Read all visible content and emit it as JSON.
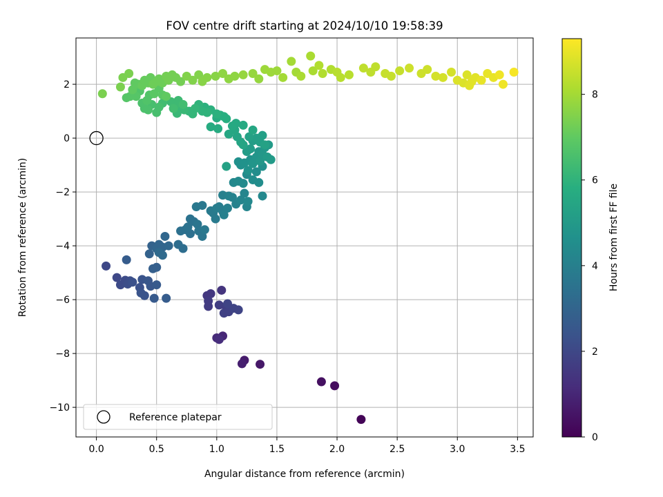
{
  "chart_data": {
    "type": "scatter",
    "title": "FOV centre drift starting at 2024/10/10 19:58:39",
    "xlabel": "Angular distance from reference (arcmin)",
    "ylabel": "Rotation from reference (arcmin)",
    "xlim": [
      -0.17,
      3.63
    ],
    "ylim": [
      -11.1,
      3.72
    ],
    "xticks": [
      0.0,
      0.5,
      1.0,
      1.5,
      2.0,
      2.5,
      3.0,
      3.5
    ],
    "xtick_labels": [
      "0.0",
      "0.5",
      "1.0",
      "1.5",
      "2.0",
      "2.5",
      "3.0",
      "3.5"
    ],
    "yticks": [
      2,
      0,
      -2,
      -4,
      -6,
      -8,
      -10
    ],
    "ytick_labels": [
      "2",
      "0",
      "−2",
      "−4",
      "−6",
      "−8",
      "−10"
    ],
    "grid": true,
    "colormap": "viridis",
    "colorbar": {
      "label": "Hours from first FF file",
      "range": [
        0,
        9.3
      ],
      "ticks": [
        0,
        2,
        4,
        6,
        8
      ],
      "tick_labels": [
        "0",
        "2",
        "4",
        "6",
        "8"
      ]
    },
    "reference_point": {
      "x": 0.0,
      "y": 0.0,
      "label": "Reference platepar"
    },
    "legend": {
      "placement": "lower-left",
      "entries": [
        "Reference platepar"
      ]
    },
    "points": [
      {
        "x": 2.2,
        "y": -10.45,
        "t": 0.1
      },
      {
        "x": 1.98,
        "y": -9.2,
        "t": 0.3
      },
      {
        "x": 1.87,
        "y": -9.05,
        "t": 0.4
      },
      {
        "x": 1.36,
        "y": -8.4,
        "t": 0.6
      },
      {
        "x": 1.23,
        "y": -8.25,
        "t": 0.7
      },
      {
        "x": 1.21,
        "y": -8.38,
        "t": 0.8
      },
      {
        "x": 1.05,
        "y": -7.35,
        "t": 1.0
      },
      {
        "x": 1.0,
        "y": -7.42,
        "t": 1.1
      },
      {
        "x": 1.02,
        "y": -7.48,
        "t": 1.2
      },
      {
        "x": 1.04,
        "y": -5.65,
        "t": 1.4
      },
      {
        "x": 0.92,
        "y": -5.85,
        "t": 1.5
      },
      {
        "x": 0.95,
        "y": -5.78,
        "t": 1.5
      },
      {
        "x": 0.93,
        "y": -6.05,
        "t": 1.6
      },
      {
        "x": 0.93,
        "y": -6.25,
        "t": 1.6
      },
      {
        "x": 1.02,
        "y": -6.2,
        "t": 1.7
      },
      {
        "x": 1.08,
        "y": -6.3,
        "t": 1.7
      },
      {
        "x": 1.06,
        "y": -6.5,
        "t": 1.8
      },
      {
        "x": 1.1,
        "y": -6.45,
        "t": 1.8
      },
      {
        "x": 1.14,
        "y": -6.32,
        "t": 1.9
      },
      {
        "x": 1.18,
        "y": -6.38,
        "t": 1.9
      },
      {
        "x": 1.09,
        "y": -6.15,
        "t": 1.9
      },
      {
        "x": 0.08,
        "y": -4.75,
        "t": 2.0
      },
      {
        "x": 0.17,
        "y": -5.18,
        "t": 2.0
      },
      {
        "x": 0.2,
        "y": -5.45,
        "t": 2.1
      },
      {
        "x": 0.24,
        "y": -5.28,
        "t": 2.1
      },
      {
        "x": 0.28,
        "y": -5.3,
        "t": 2.2
      },
      {
        "x": 0.26,
        "y": -5.42,
        "t": 2.2
      },
      {
        "x": 0.3,
        "y": -5.35,
        "t": 2.3
      },
      {
        "x": 0.36,
        "y": -5.55,
        "t": 2.3
      },
      {
        "x": 0.38,
        "y": -5.25,
        "t": 2.4
      },
      {
        "x": 0.37,
        "y": -5.75,
        "t": 2.4
      },
      {
        "x": 0.4,
        "y": -5.85,
        "t": 2.4
      },
      {
        "x": 0.43,
        "y": -5.3,
        "t": 2.5
      },
      {
        "x": 0.45,
        "y": -5.5,
        "t": 2.5
      },
      {
        "x": 0.48,
        "y": -5.95,
        "t": 2.6
      },
      {
        "x": 0.5,
        "y": -5.45,
        "t": 2.6
      },
      {
        "x": 0.58,
        "y": -5.95,
        "t": 2.7
      },
      {
        "x": 0.25,
        "y": -4.52,
        "t": 2.7
      },
      {
        "x": 0.47,
        "y": -4.85,
        "t": 2.8
      },
      {
        "x": 0.5,
        "y": -4.8,
        "t": 2.8
      },
      {
        "x": 0.44,
        "y": -4.3,
        "t": 2.9
      },
      {
        "x": 0.46,
        "y": -4.0,
        "t": 2.9
      },
      {
        "x": 0.5,
        "y": -4.1,
        "t": 3.0
      },
      {
        "x": 0.52,
        "y": -3.95,
        "t": 3.0
      },
      {
        "x": 0.55,
        "y": -4.05,
        "t": 3.0
      },
      {
        "x": 0.57,
        "y": -3.65,
        "t": 3.1
      },
      {
        "x": 0.6,
        "y": -4.0,
        "t": 3.1
      },
      {
        "x": 0.52,
        "y": -4.25,
        "t": 3.2
      },
      {
        "x": 0.55,
        "y": -4.35,
        "t": 3.2
      },
      {
        "x": 0.68,
        "y": -3.95,
        "t": 3.3
      },
      {
        "x": 0.72,
        "y": -4.1,
        "t": 3.3
      },
      {
        "x": 0.74,
        "y": -3.4,
        "t": 3.4
      },
      {
        "x": 0.7,
        "y": -3.45,
        "t": 3.4
      },
      {
        "x": 0.78,
        "y": -3.55,
        "t": 3.4
      },
      {
        "x": 0.76,
        "y": -3.3,
        "t": 3.5
      },
      {
        "x": 0.78,
        "y": -3.0,
        "t": 3.5
      },
      {
        "x": 0.81,
        "y": -3.1,
        "t": 3.5
      },
      {
        "x": 0.84,
        "y": -3.2,
        "t": 3.6
      },
      {
        "x": 0.85,
        "y": -3.45,
        "t": 3.6
      },
      {
        "x": 0.88,
        "y": -3.65,
        "t": 3.6
      },
      {
        "x": 0.9,
        "y": -3.4,
        "t": 3.7
      },
      {
        "x": 0.83,
        "y": -2.55,
        "t": 3.7
      },
      {
        "x": 0.88,
        "y": -2.5,
        "t": 3.7
      },
      {
        "x": 0.95,
        "y": -2.7,
        "t": 3.8
      },
      {
        "x": 0.97,
        "y": -2.78,
        "t": 3.8
      },
      {
        "x": 0.99,
        "y": -3.0,
        "t": 3.8
      },
      {
        "x": 1.0,
        "y": -2.6,
        "t": 3.9
      },
      {
        "x": 1.02,
        "y": -2.55,
        "t": 3.9
      },
      {
        "x": 1.05,
        "y": -2.72,
        "t": 3.9
      },
      {
        "x": 1.06,
        "y": -2.85,
        "t": 4.0
      },
      {
        "x": 1.09,
        "y": -2.6,
        "t": 4.0
      },
      {
        "x": 1.05,
        "y": -2.12,
        "t": 4.0
      },
      {
        "x": 1.1,
        "y": -2.15,
        "t": 4.1
      },
      {
        "x": 1.13,
        "y": -2.2,
        "t": 4.1
      },
      {
        "x": 1.16,
        "y": -2.45,
        "t": 4.1
      },
      {
        "x": 1.2,
        "y": -2.3,
        "t": 4.2
      },
      {
        "x": 1.23,
        "y": -2.05,
        "t": 4.2
      },
      {
        "x": 1.25,
        "y": -2.55,
        "t": 4.2
      },
      {
        "x": 1.26,
        "y": -2.35,
        "t": 4.3
      },
      {
        "x": 1.38,
        "y": -2.15,
        "t": 4.3
      },
      {
        "x": 1.14,
        "y": -1.65,
        "t": 4.3
      },
      {
        "x": 1.18,
        "y": -1.6,
        "t": 4.4
      },
      {
        "x": 1.22,
        "y": -1.68,
        "t": 4.4
      },
      {
        "x": 1.25,
        "y": -1.35,
        "t": 4.4
      },
      {
        "x": 1.3,
        "y": -1.55,
        "t": 4.5
      },
      {
        "x": 1.33,
        "y": -1.25,
        "t": 4.5
      },
      {
        "x": 1.35,
        "y": -1.65,
        "t": 4.5
      },
      {
        "x": 1.38,
        "y": -1.05,
        "t": 4.6
      },
      {
        "x": 1.18,
        "y": -0.88,
        "t": 4.6
      },
      {
        "x": 1.2,
        "y": -1.0,
        "t": 4.6
      },
      {
        "x": 1.23,
        "y": -0.92,
        "t": 4.7
      },
      {
        "x": 1.26,
        "y": -1.2,
        "t": 4.7
      },
      {
        "x": 1.28,
        "y": -0.8,
        "t": 4.7
      },
      {
        "x": 1.3,
        "y": -0.95,
        "t": 4.8
      },
      {
        "x": 1.33,
        "y": -0.7,
        "t": 4.8
      },
      {
        "x": 1.35,
        "y": -0.5,
        "t": 4.8
      },
      {
        "x": 1.36,
        "y": -0.85,
        "t": 4.9
      },
      {
        "x": 1.38,
        "y": -0.6,
        "t": 4.9
      },
      {
        "x": 1.4,
        "y": -0.35,
        "t": 4.9
      },
      {
        "x": 1.42,
        "y": -0.7,
        "t": 5.0
      },
      {
        "x": 1.45,
        "y": -0.8,
        "t": 5.0
      },
      {
        "x": 1.43,
        "y": -0.25,
        "t": 5.0
      },
      {
        "x": 1.28,
        "y": -0.4,
        "t": 5.1
      },
      {
        "x": 1.25,
        "y": -0.5,
        "t": 5.1
      },
      {
        "x": 1.3,
        "y": -0.1,
        "t": 5.1
      },
      {
        "x": 1.33,
        "y": 0.0,
        "t": 5.2
      },
      {
        "x": 1.36,
        "y": -0.15,
        "t": 5.2
      },
      {
        "x": 1.38,
        "y": 0.1,
        "t": 5.2
      },
      {
        "x": 1.4,
        "y": -0.25,
        "t": 5.3
      },
      {
        "x": 1.27,
        "y": 0.05,
        "t": 5.3
      },
      {
        "x": 1.08,
        "y": -1.05,
        "t": 5.3
      },
      {
        "x": 1.22,
        "y": -0.25,
        "t": 5.4
      },
      {
        "x": 1.17,
        "y": 0.05,
        "t": 5.4
      },
      {
        "x": 1.2,
        "y": -0.15,
        "t": 5.4
      },
      {
        "x": 1.3,
        "y": 0.3,
        "t": 5.5
      },
      {
        "x": 1.1,
        "y": 0.15,
        "t": 5.5
      },
      {
        "x": 1.15,
        "y": 0.3,
        "t": 5.5
      },
      {
        "x": 1.13,
        "y": 0.45,
        "t": 5.6
      },
      {
        "x": 1.16,
        "y": 0.55,
        "t": 5.6
      },
      {
        "x": 1.22,
        "y": 0.48,
        "t": 5.6
      },
      {
        "x": 1.01,
        "y": 0.35,
        "t": 5.7
      },
      {
        "x": 0.95,
        "y": 0.42,
        "t": 5.7
      },
      {
        "x": 1.0,
        "y": 0.75,
        "t": 5.7
      },
      {
        "x": 1.03,
        "y": 0.85,
        "t": 5.8
      },
      {
        "x": 1.06,
        "y": 0.8,
        "t": 5.8
      },
      {
        "x": 1.08,
        "y": 0.72,
        "t": 5.8
      },
      {
        "x": 1.0,
        "y": 0.9,
        "t": 5.9
      },
      {
        "x": 0.95,
        "y": 1.05,
        "t": 5.9
      },
      {
        "x": 0.9,
        "y": 1.15,
        "t": 5.9
      },
      {
        "x": 0.92,
        "y": 0.95,
        "t": 6.0
      },
      {
        "x": 0.88,
        "y": 1.0,
        "t": 6.0
      },
      {
        "x": 0.85,
        "y": 1.25,
        "t": 6.0
      },
      {
        "x": 0.82,
        "y": 1.1,
        "t": 6.1
      },
      {
        "x": 0.8,
        "y": 0.9,
        "t": 6.1
      },
      {
        "x": 0.77,
        "y": 1.0,
        "t": 6.1
      },
      {
        "x": 0.73,
        "y": 1.05,
        "t": 6.2
      },
      {
        "x": 0.7,
        "y": 1.15,
        "t": 6.2
      },
      {
        "x": 0.67,
        "y": 0.92,
        "t": 6.2
      },
      {
        "x": 0.65,
        "y": 1.2,
        "t": 6.3
      },
      {
        "x": 0.62,
        "y": 1.35,
        "t": 6.3
      },
      {
        "x": 0.68,
        "y": 1.4,
        "t": 6.3
      },
      {
        "x": 0.72,
        "y": 1.25,
        "t": 6.4
      },
      {
        "x": 0.64,
        "y": 1.1,
        "t": 6.4
      },
      {
        "x": 0.55,
        "y": 1.3,
        "t": 6.4
      },
      {
        "x": 0.52,
        "y": 1.15,
        "t": 6.5
      },
      {
        "x": 0.5,
        "y": 0.95,
        "t": 6.5
      },
      {
        "x": 0.46,
        "y": 1.25,
        "t": 6.5
      },
      {
        "x": 0.43,
        "y": 1.05,
        "t": 6.6
      },
      {
        "x": 0.4,
        "y": 1.1,
        "t": 6.6
      },
      {
        "x": 0.38,
        "y": 1.3,
        "t": 6.6
      },
      {
        "x": 0.42,
        "y": 1.4,
        "t": 6.7
      },
      {
        "x": 0.44,
        "y": 1.6,
        "t": 6.7
      },
      {
        "x": 0.36,
        "y": 1.75,
        "t": 6.7
      },
      {
        "x": 0.33,
        "y": 1.55,
        "t": 6.8
      },
      {
        "x": 0.28,
        "y": 1.55,
        "t": 6.8
      },
      {
        "x": 0.25,
        "y": 1.5,
        "t": 6.8
      },
      {
        "x": 0.48,
        "y": 1.65,
        "t": 6.9
      },
      {
        "x": 0.52,
        "y": 1.85,
        "t": 6.9
      },
      {
        "x": 0.55,
        "y": 1.6,
        "t": 6.9
      },
      {
        "x": 0.58,
        "y": 1.55,
        "t": 7.0
      },
      {
        "x": 0.3,
        "y": 1.8,
        "t": 7.0
      },
      {
        "x": 0.32,
        "y": 2.05,
        "t": 7.0
      },
      {
        "x": 0.35,
        "y": 2.0,
        "t": 7.0
      },
      {
        "x": 0.38,
        "y": 1.95,
        "t": 7.1
      },
      {
        "x": 0.4,
        "y": 2.15,
        "t": 7.1
      },
      {
        "x": 0.43,
        "y": 2.05,
        "t": 7.1
      },
      {
        "x": 0.45,
        "y": 2.25,
        "t": 7.1
      },
      {
        "x": 0.47,
        "y": 2.0,
        "t": 7.2
      },
      {
        "x": 0.5,
        "y": 2.1,
        "t": 7.2
      },
      {
        "x": 0.52,
        "y": 2.2,
        "t": 7.2
      },
      {
        "x": 0.55,
        "y": 2.05,
        "t": 7.2
      },
      {
        "x": 0.58,
        "y": 2.3,
        "t": 7.3
      },
      {
        "x": 0.6,
        "y": 2.15,
        "t": 7.3
      },
      {
        "x": 0.63,
        "y": 2.35,
        "t": 7.3
      },
      {
        "x": 0.66,
        "y": 2.25,
        "t": 7.3
      },
      {
        "x": 0.7,
        "y": 2.1,
        "t": 7.3
      },
      {
        "x": 0.05,
        "y": 1.65,
        "t": 7.4
      },
      {
        "x": 0.2,
        "y": 1.9,
        "t": 7.4
      },
      {
        "x": 0.22,
        "y": 2.25,
        "t": 7.4
      },
      {
        "x": 0.27,
        "y": 2.4,
        "t": 7.4
      },
      {
        "x": 0.75,
        "y": 2.3,
        "t": 7.5
      },
      {
        "x": 0.8,
        "y": 2.15,
        "t": 7.5
      },
      {
        "x": 0.85,
        "y": 2.35,
        "t": 7.5
      },
      {
        "x": 0.88,
        "y": 2.1,
        "t": 7.6
      },
      {
        "x": 0.92,
        "y": 2.25,
        "t": 7.6
      },
      {
        "x": 0.99,
        "y": 2.3,
        "t": 7.6
      },
      {
        "x": 1.05,
        "y": 2.4,
        "t": 7.7
      },
      {
        "x": 1.1,
        "y": 2.2,
        "t": 7.7
      },
      {
        "x": 1.15,
        "y": 2.3,
        "t": 7.7
      },
      {
        "x": 1.22,
        "y": 2.35,
        "t": 7.8
      },
      {
        "x": 1.3,
        "y": 2.4,
        "t": 7.8
      },
      {
        "x": 1.35,
        "y": 2.2,
        "t": 7.8
      },
      {
        "x": 1.4,
        "y": 2.55,
        "t": 7.9
      },
      {
        "x": 1.45,
        "y": 2.45,
        "t": 7.9
      },
      {
        "x": 1.5,
        "y": 2.5,
        "t": 7.9
      },
      {
        "x": 1.55,
        "y": 2.25,
        "t": 8.0
      },
      {
        "x": 1.62,
        "y": 2.85,
        "t": 8.0
      },
      {
        "x": 1.66,
        "y": 2.45,
        "t": 8.0
      },
      {
        "x": 1.7,
        "y": 2.3,
        "t": 8.1
      },
      {
        "x": 1.78,
        "y": 3.05,
        "t": 8.1
      },
      {
        "x": 1.8,
        "y": 2.5,
        "t": 8.1
      },
      {
        "x": 1.85,
        "y": 2.7,
        "t": 8.2
      },
      {
        "x": 1.88,
        "y": 2.4,
        "t": 8.2
      },
      {
        "x": 1.95,
        "y": 2.55,
        "t": 8.2
      },
      {
        "x": 2.0,
        "y": 2.45,
        "t": 8.3
      },
      {
        "x": 2.03,
        "y": 2.25,
        "t": 8.3
      },
      {
        "x": 2.1,
        "y": 2.35,
        "t": 8.3
      },
      {
        "x": 2.22,
        "y": 2.6,
        "t": 8.4
      },
      {
        "x": 2.28,
        "y": 2.45,
        "t": 8.4
      },
      {
        "x": 2.32,
        "y": 2.65,
        "t": 8.4
      },
      {
        "x": 2.4,
        "y": 2.4,
        "t": 8.5
      },
      {
        "x": 2.45,
        "y": 2.3,
        "t": 8.5
      },
      {
        "x": 2.52,
        "y": 2.5,
        "t": 8.5
      },
      {
        "x": 2.6,
        "y": 2.6,
        "t": 8.6
      },
      {
        "x": 2.7,
        "y": 2.4,
        "t": 8.6
      },
      {
        "x": 2.75,
        "y": 2.55,
        "t": 8.6
      },
      {
        "x": 2.82,
        "y": 2.3,
        "t": 8.7
      },
      {
        "x": 2.88,
        "y": 2.25,
        "t": 8.7
      },
      {
        "x": 2.95,
        "y": 2.45,
        "t": 8.7
      },
      {
        "x": 3.0,
        "y": 2.15,
        "t": 8.8
      },
      {
        "x": 3.05,
        "y": 2.05,
        "t": 8.8
      },
      {
        "x": 3.08,
        "y": 2.35,
        "t": 8.8
      },
      {
        "x": 3.1,
        "y": 1.95,
        "t": 8.9
      },
      {
        "x": 3.12,
        "y": 2.1,
        "t": 8.9
      },
      {
        "x": 3.15,
        "y": 2.25,
        "t": 8.9
      },
      {
        "x": 3.2,
        "y": 2.15,
        "t": 9.0
      },
      {
        "x": 3.25,
        "y": 2.4,
        "t": 9.0
      },
      {
        "x": 3.3,
        "y": 2.25,
        "t": 9.0
      },
      {
        "x": 3.35,
        "y": 2.35,
        "t": 9.1
      },
      {
        "x": 3.38,
        "y": 2.0,
        "t": 9.1
      },
      {
        "x": 3.47,
        "y": 2.45,
        "t": 9.2
      }
    ]
  }
}
